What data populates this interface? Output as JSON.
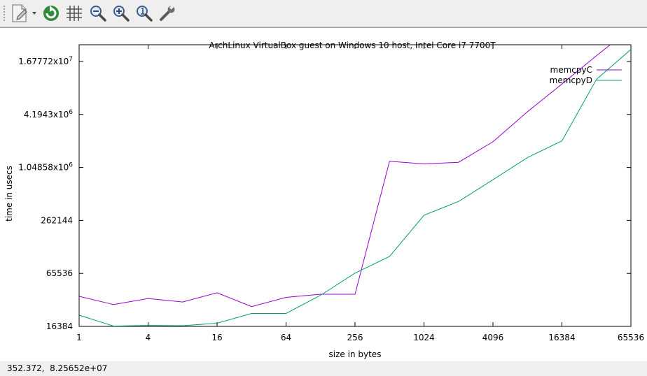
{
  "toolbar": {
    "buttons": [
      {
        "name": "export-button",
        "icon": "export-document-icon"
      },
      {
        "name": "replot-button",
        "icon": "refresh-icon"
      },
      {
        "name": "grid-button",
        "icon": "grid-icon"
      },
      {
        "name": "zoom-previous-button",
        "icon": "zoom-out-icon"
      },
      {
        "name": "zoom-next-button",
        "icon": "zoom-in-icon"
      },
      {
        "name": "zoom-reset-button",
        "icon": "zoom-reset-icon"
      },
      {
        "name": "settings-button",
        "icon": "wrench-icon"
      }
    ]
  },
  "status": {
    "coords": "352.372,  8.25652e+07"
  },
  "chart_data": {
    "type": "line",
    "title": "ArchLinux VirtualBox guest on Windows 10 host, Intel Core i7 7700T",
    "xlabel": "size in bytes",
    "ylabel": "time in usecs",
    "x_scale": "log2",
    "y_scale": "log2",
    "xlim": [
      1,
      65536
    ],
    "ylim": [
      16384,
      26000000
    ],
    "x_ticks": [
      {
        "value": 1,
        "label": "1"
      },
      {
        "value": 4,
        "label": "4"
      },
      {
        "value": 16,
        "label": "16"
      },
      {
        "value": 64,
        "label": "64"
      },
      {
        "value": 256,
        "label": "256"
      },
      {
        "value": 1024,
        "label": "1024"
      },
      {
        "value": 4096,
        "label": "4096"
      },
      {
        "value": 16384,
        "label": "16384"
      },
      {
        "value": 65536,
        "label": "65536"
      }
    ],
    "y_ticks": [
      {
        "value": 16384,
        "label": "16384"
      },
      {
        "value": 65536,
        "label": "65536"
      },
      {
        "value": 262144,
        "label": "262144"
      },
      {
        "value": 1048576,
        "label": "1.04858x10",
        "exp": "6"
      },
      {
        "value": 4194304,
        "label": "4.1943x10",
        "exp": "6"
      },
      {
        "value": 16777216,
        "label": "1.67772x10",
        "exp": "7"
      }
    ],
    "legend_position": "top-right",
    "grid": false,
    "x": [
      1,
      2,
      4,
      8,
      16,
      32,
      64,
      128,
      256,
      512,
      1024,
      2048,
      4096,
      8192,
      16384,
      32768,
      65536
    ],
    "series": [
      {
        "name": "memcpyC",
        "color": "#9400d3",
        "values": [
          36000,
          29000,
          34000,
          31000,
          39500,
          27500,
          35000,
          38000,
          38000,
          1230000,
          1150000,
          1200000,
          2050000,
          4500000,
          9300000,
          19500000,
          40000000
        ]
      },
      {
        "name": "memcpyD",
        "color": "#009e73",
        "values": [
          22000,
          16500,
          16800,
          16700,
          17800,
          23000,
          23000,
          37000,
          66000,
          102000,
          300000,
          430000,
          760000,
          1360000,
          2100000,
          10500000,
          23000000
        ]
      }
    ]
  }
}
